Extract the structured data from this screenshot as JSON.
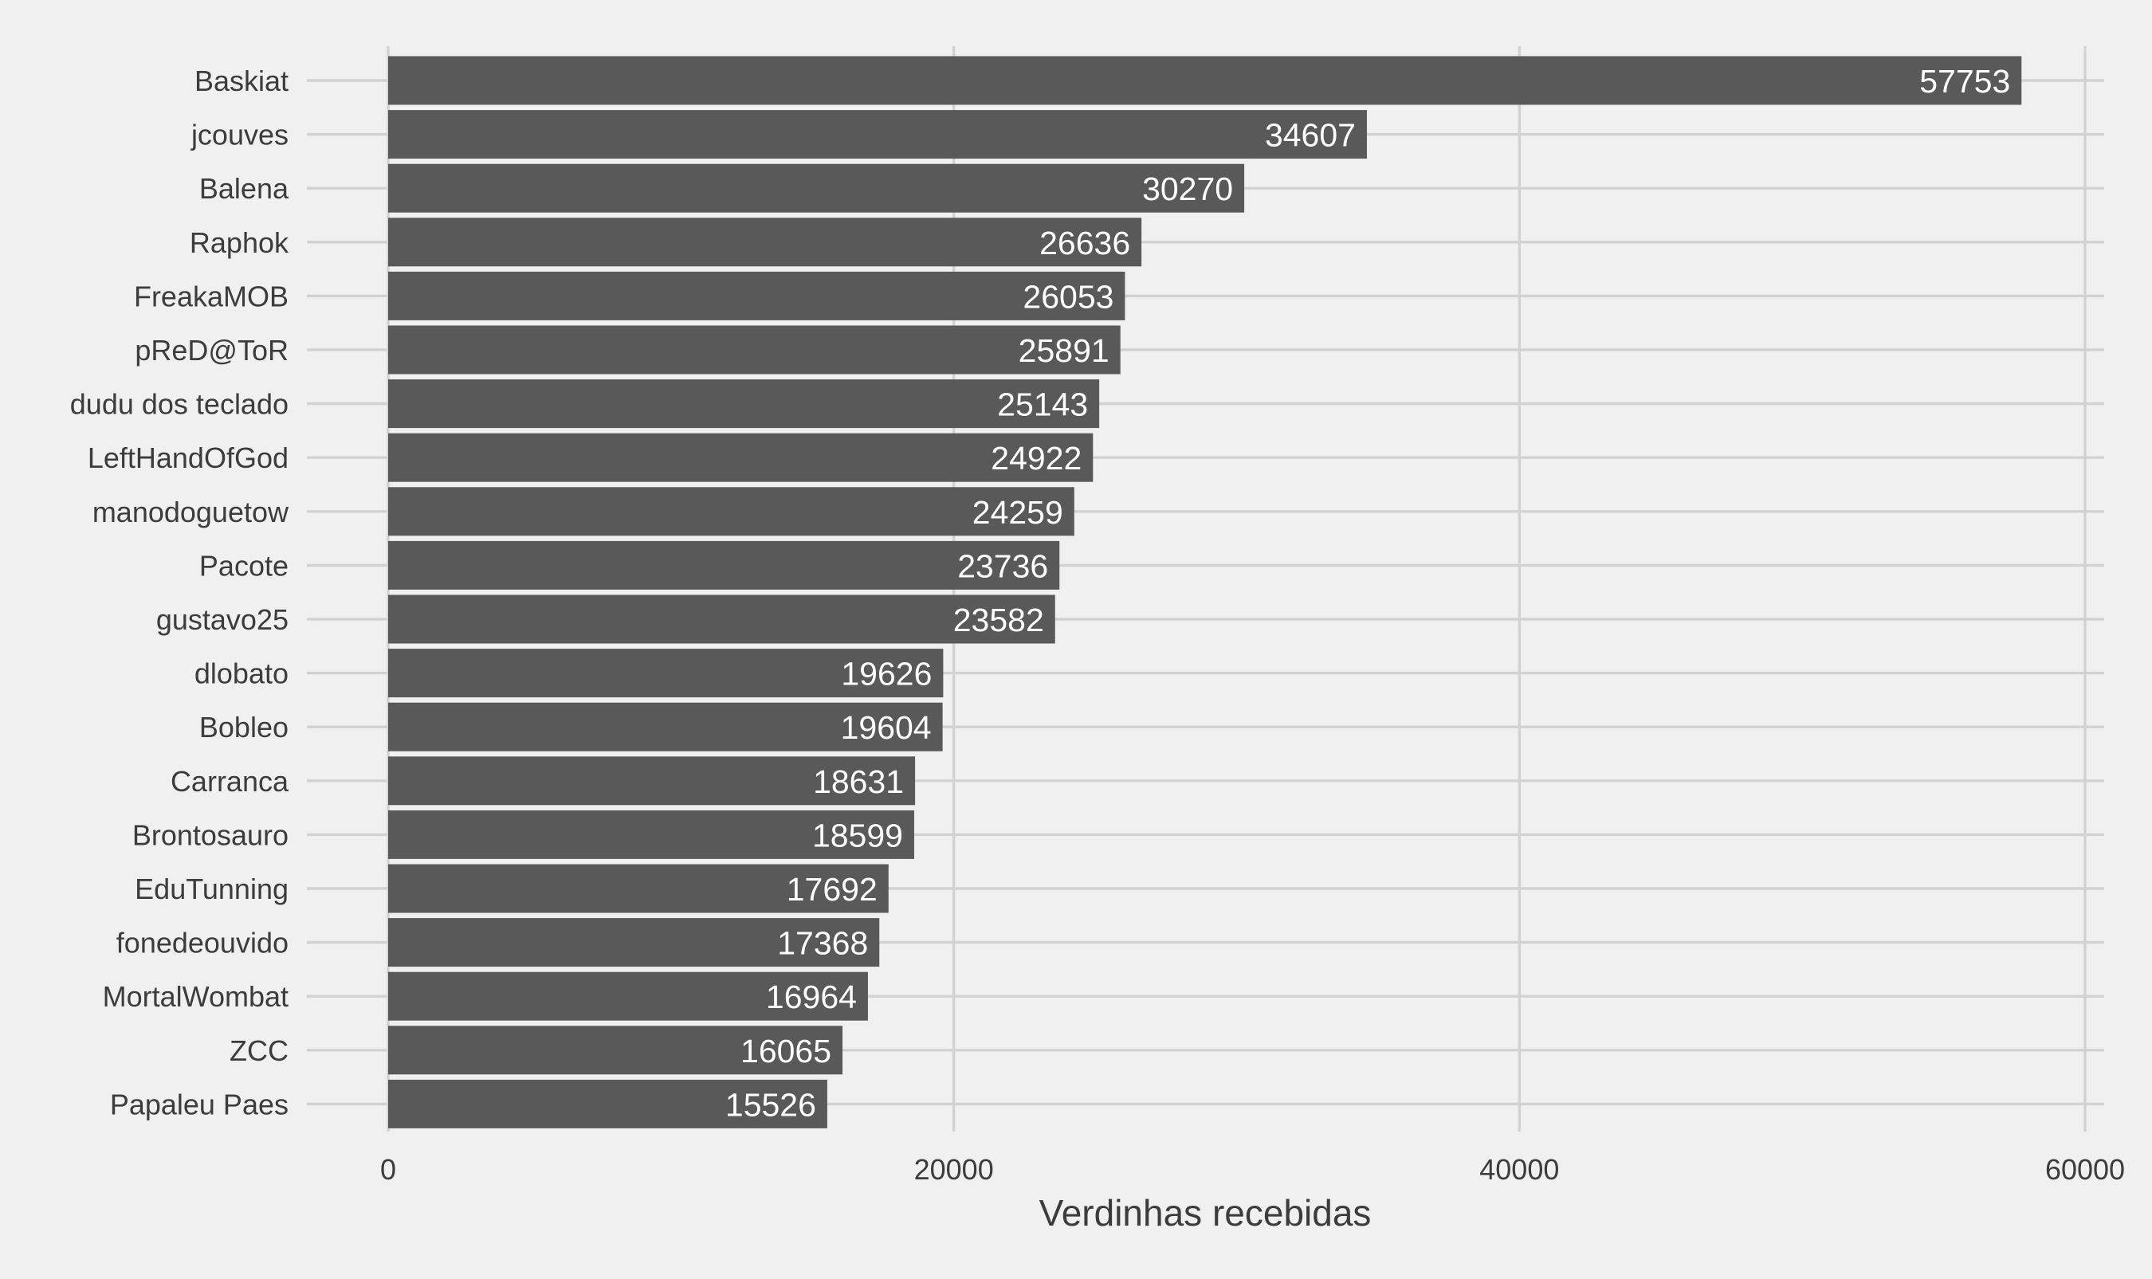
{
  "chart_data": {
    "type": "bar",
    "orientation": "horizontal",
    "title": "",
    "xlabel": "Verdinhas recebidas",
    "ylabel": "",
    "xlim": [
      0,
      60000
    ],
    "x_ticks": [
      0,
      20000,
      40000,
      60000
    ],
    "x_tick_labels": [
      "0",
      "20000",
      "40000",
      "60000"
    ],
    "grid": true,
    "legend": "none",
    "bar_color": "#595959",
    "background_color": "#f0f0f0",
    "categories": [
      "Baskiat",
      "jcouves",
      "Balena",
      "Raphok",
      "FreakaMOB",
      "pReD@ToR",
      "dudu dos teclado",
      "LeftHandOfGod",
      "manodoguetow",
      "Pacote",
      "gustavo25",
      "dlobato",
      "Bobleo",
      "Carranca",
      "Brontosauro",
      "EduTunning",
      "fonedeouvido",
      "MortalWombat",
      "ZCC",
      "Papaleu Paes"
    ],
    "values": [
      57753,
      34607,
      30270,
      26636,
      26053,
      25891,
      25143,
      24922,
      24259,
      23736,
      23582,
      19626,
      19604,
      18631,
      18599,
      17692,
      17368,
      16964,
      16065,
      15526
    ],
    "value_labels": [
      "57753",
      "34607",
      "30270",
      "26636",
      "26053",
      "25891",
      "25143",
      "24922",
      "24259",
      "23736",
      "23582",
      "19626",
      "19604",
      "18631",
      "18599",
      "17692",
      "17368",
      "16964",
      "16065",
      "15526"
    ]
  }
}
